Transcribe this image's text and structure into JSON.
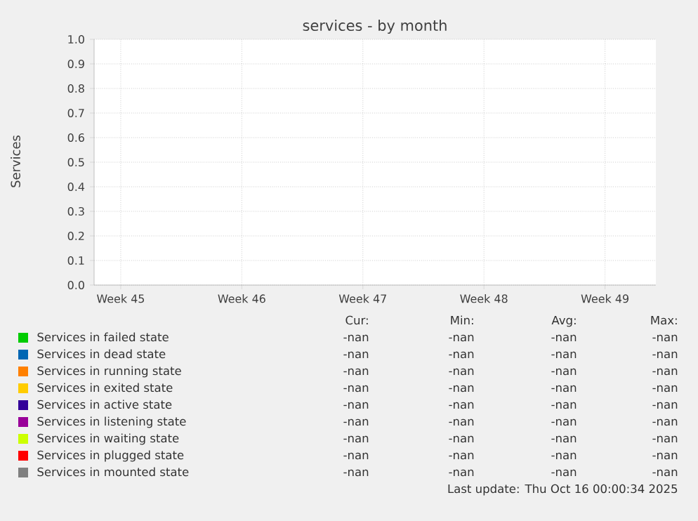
{
  "chart_data": {
    "type": "line",
    "title": "services - by month",
    "ylabel": "Services",
    "categories": [
      "Week 45",
      "Week 46",
      "Week 47",
      "Week 48",
      "Week 49"
    ],
    "ylim": [
      0,
      1
    ],
    "yticks": [
      {
        "value": 0,
        "label": "0.0"
      },
      {
        "value": 0.1,
        "label": "0.1"
      },
      {
        "value": 0.2,
        "label": "0.2"
      },
      {
        "value": 0.3,
        "label": "0.3"
      },
      {
        "value": 0.4,
        "label": "0.4"
      },
      {
        "value": 0.5,
        "label": "0.5"
      },
      {
        "value": 0.6,
        "label": "0.6"
      },
      {
        "value": 0.7,
        "label": "0.7"
      },
      {
        "value": 0.8,
        "label": "0.8"
      },
      {
        "value": 0.9,
        "label": "0.9"
      },
      {
        "value": 1,
        "label": "1.0"
      }
    ],
    "grid": true,
    "legend": "bottom",
    "series": [
      {
        "name": "Services in failed state",
        "color": "#00cc00",
        "values": [
          null,
          null,
          null,
          null,
          null
        ]
      },
      {
        "name": "Services in dead state",
        "color": "#0066b3",
        "values": [
          null,
          null,
          null,
          null,
          null
        ]
      },
      {
        "name": "Services in running state",
        "color": "#ff8000",
        "values": [
          null,
          null,
          null,
          null,
          null
        ]
      },
      {
        "name": "Services in exited state",
        "color": "#ffcc00",
        "values": [
          null,
          null,
          null,
          null,
          null
        ]
      },
      {
        "name": "Services in active state",
        "color": "#330099",
        "values": [
          null,
          null,
          null,
          null,
          null
        ]
      },
      {
        "name": "Services in listening state",
        "color": "#990099",
        "values": [
          null,
          null,
          null,
          null,
          null
        ]
      },
      {
        "name": "Services in waiting state",
        "color": "#ccff00",
        "values": [
          null,
          null,
          null,
          null,
          null
        ]
      },
      {
        "name": "Services in plugged state",
        "color": "#ff0000",
        "values": [
          null,
          null,
          null,
          null,
          null
        ]
      },
      {
        "name": "Services in mounted state",
        "color": "#808080",
        "values": [
          null,
          null,
          null,
          null,
          null
        ]
      }
    ],
    "annotations": [
      "Cur:",
      "Min:",
      "Avg:",
      "Max:",
      "-nan",
      "-nan",
      "-nan",
      "-nan",
      "-nan",
      "-nan",
      "-nan",
      "-nan",
      "-nan",
      "-nan",
      "-nan",
      "-nan",
      "-nan",
      "-nan",
      "-nan",
      "-nan",
      "-nan",
      "-nan",
      "-nan",
      "-nan",
      "-nan",
      "-nan",
      "-nan",
      "-nan",
      "-nan",
      "-nan",
      "-nan",
      "-nan",
      "-nan",
      "-nan",
      "-nan",
      "-nan",
      "-nan",
      "-nan",
      "-nan",
      "-nan",
      "Last update: Thu Oct 16 00:00:34 2025"
    ]
  }
}
